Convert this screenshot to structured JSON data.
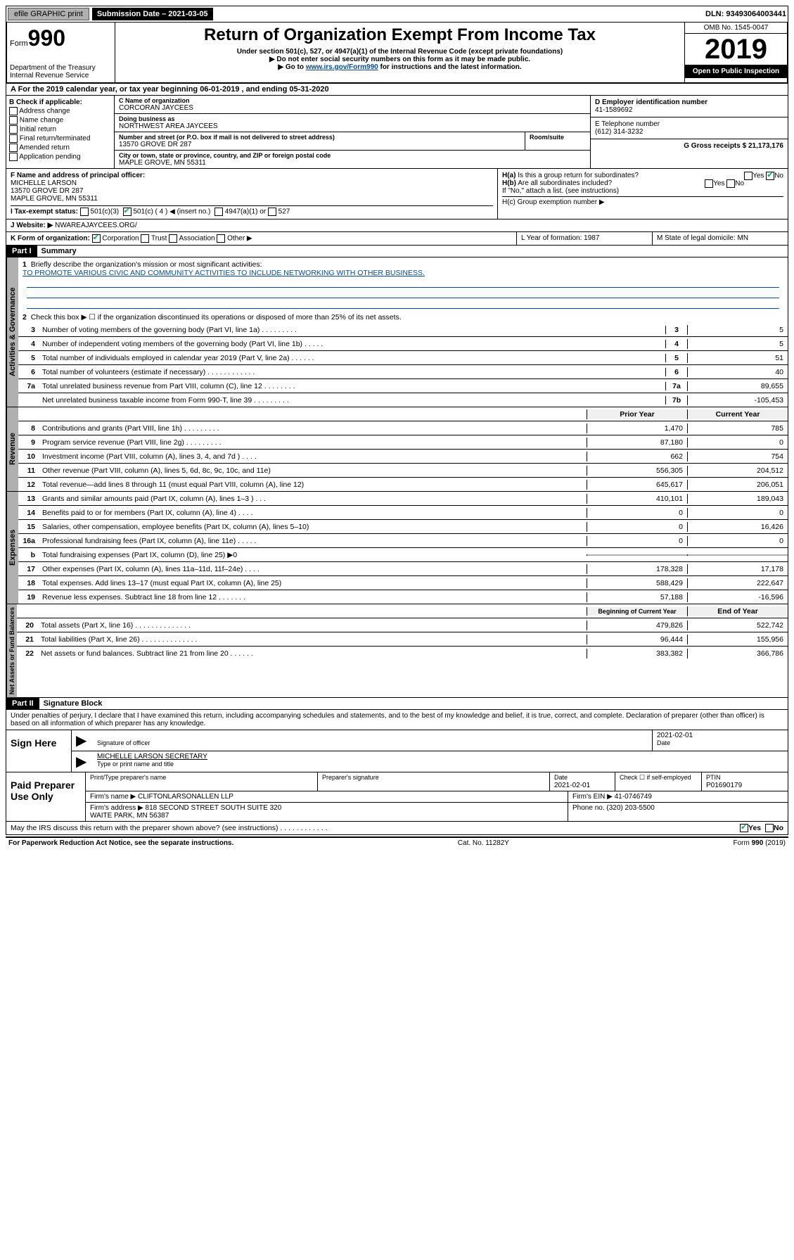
{
  "topbar": {
    "efile": "efile GRAPHIC print",
    "sub_label": "Submission Date – 2021-03-05",
    "dln": "DLN: 93493064003441"
  },
  "header": {
    "form_word": "Form",
    "form_num": "990",
    "dept": "Department of the Treasury\nInternal Revenue Service",
    "title": "Return of Organization Exempt From Income Tax",
    "sub1": "Under section 501(c), 527, or 4947(a)(1) of the Internal Revenue Code (except private foundations)",
    "sub2": "▶ Do not enter social security numbers on this form as it may be made public.",
    "sub3_pre": "▶ Go to ",
    "sub3_link": "www.irs.gov/Form990",
    "sub3_post": " for instructions and the latest information.",
    "omb": "OMB No. 1545-0047",
    "year": "2019",
    "open": "Open to Public Inspection"
  },
  "rowA": "A   For the 2019 calendar year, or tax year beginning 06-01-2019    , and ending 05-31-2020",
  "colB": {
    "head": "B Check if applicable:",
    "opts": [
      "Address change",
      "Name change",
      "Initial return",
      "Final return/terminated",
      "Amended return",
      "Application pending"
    ]
  },
  "colC": {
    "name_lbl": "C Name of organization",
    "name": "CORCORAN JAYCEES",
    "dba_lbl": "Doing business as",
    "dba": "NORTHWEST AREA JAYCEES",
    "addr_lbl": "Number and street (or P.O. box if mail is not delivered to street address)",
    "room_lbl": "Room/suite",
    "addr": "13570 GROVE DR 287",
    "city_lbl": "City or town, state or province, country, and ZIP or foreign postal code",
    "city": "MAPLE GROVE, MN  55311"
  },
  "colD": {
    "d_lbl": "D Employer identification number",
    "d_val": "41-1589692",
    "e_lbl": "E Telephone number",
    "e_val": "(612) 314-3232",
    "g_lbl": "G Gross receipts $ 21,173,176"
  },
  "rowF": {
    "f_lbl": "F  Name and address of principal officer:",
    "f_val": "MICHELLE LARSON\n13570 GROVE DR 287\nMAPLE GROVE, MN  55311",
    "h_a": "H(a)  Is this a group return for subordinates?",
    "h_b": "H(b)  Are all subordinates included?",
    "h_note": "If \"No,\" attach a list. (see instructions)",
    "h_c": "H(c)  Group exemption number ▶",
    "yes": "Yes",
    "no": "No"
  },
  "rowI": {
    "lbl": "I     Tax-exempt status:",
    "o1": "501(c)(3)",
    "o2": "501(c) ( 4 ) ◀ (insert no.)",
    "o3": "4947(a)(1) or",
    "o4": "527"
  },
  "rowJ": {
    "lbl": "J     Website: ▶",
    "val": "NWAREAJAYCEES.ORG/"
  },
  "rowK": {
    "lbl": "K Form of organization:",
    "o1": "Corporation",
    "o2": "Trust",
    "o3": "Association",
    "o4": "Other ▶",
    "l_lbl": "L Year of formation: 1987",
    "m_lbl": "M State of legal domicile: MN"
  },
  "part1": {
    "hdr": "Part I",
    "title": "Summary",
    "q1": "Briefly describe the organization's mission or most significant activities:",
    "mission": "TO PROMOTE VARIOUS CIVIC AND COMMUNITY ACTIVITIES TO INCLUDE NETWORKING WITH OTHER BUSINESS.",
    "q2": "Check this box ▶ ☐  if the organization discontinued its operations or disposed of more than 25% of its net assets.",
    "rows_gov": [
      {
        "n": "3",
        "t": "Number of voting members of the governing body (Part VI, line 1a)   .    .    .    .    .    .    .    .    .",
        "bn": "3",
        "v": "5"
      },
      {
        "n": "4",
        "t": "Number of independent voting members of the governing body (Part VI, line 1b)   .    .    .    .    .",
        "bn": "4",
        "v": "5"
      },
      {
        "n": "5",
        "t": "Total number of individuals employed in calendar year 2019 (Part V, line 2a)   .    .    .    .    .    .",
        "bn": "5",
        "v": "51"
      },
      {
        "n": "6",
        "t": "Total number of volunteers (estimate if necessary)   .    .    .    .    .    .    .    .    .    .    .    .",
        "bn": "6",
        "v": "40"
      },
      {
        "n": "7a",
        "t": "Total unrelated business revenue from Part VIII, column (C), line 12   .    .    .    .    .    .    .    .",
        "bn": "7a",
        "v": "89,655"
      },
      {
        "n": "",
        "t": "Net unrelated business taxable income from Form 990-T, line 39   .    .    .    .    .    .    .    .    .",
        "bn": "7b",
        "v": "-105,453"
      }
    ],
    "col_hdr1": "Prior Year",
    "col_hdr2": "Current Year",
    "rows_rev": [
      {
        "n": "8",
        "t": "Contributions and grants (Part VIII, line 1h)   .    .    .    .    .    .    .    .    .",
        "p": "1,470",
        "c": "785"
      },
      {
        "n": "9",
        "t": "Program service revenue (Part VIII, line 2g)   .    .    .    .    .    .    .    .    .",
        "p": "87,180",
        "c": "0"
      },
      {
        "n": "10",
        "t": "Investment income (Part VIII, column (A), lines 3, 4, and 7d )   .    .    .    .",
        "p": "662",
        "c": "754"
      },
      {
        "n": "11",
        "t": "Other revenue (Part VIII, column (A), lines 5, 6d, 8c, 9c, 10c, and 11e)",
        "p": "556,305",
        "c": "204,512"
      },
      {
        "n": "12",
        "t": "Total revenue—add lines 8 through 11 (must equal Part VIII, column (A), line 12)",
        "p": "645,617",
        "c": "206,051"
      }
    ],
    "rows_exp": [
      {
        "n": "13",
        "t": "Grants and similar amounts paid (Part IX, column (A), lines 1–3 )   .    .    .",
        "p": "410,101",
        "c": "189,043"
      },
      {
        "n": "14",
        "t": "Benefits paid to or for members (Part IX, column (A), line 4)   .    .    .    .",
        "p": "0",
        "c": "0"
      },
      {
        "n": "15",
        "t": "Salaries, other compensation, employee benefits (Part IX, column (A), lines 5–10)",
        "p": "0",
        "c": "16,426"
      },
      {
        "n": "16a",
        "t": "Professional fundraising fees (Part IX, column (A), line 11e)   .    .    .    .    .",
        "p": "0",
        "c": "0"
      },
      {
        "n": "b",
        "t": "Total fundraising expenses (Part IX, column (D), line 25) ▶0",
        "p": "",
        "c": "",
        "shade": true
      },
      {
        "n": "17",
        "t": "Other expenses (Part IX, column (A), lines 11a–11d, 11f–24e)   .    .    .    .",
        "p": "178,328",
        "c": "17,178"
      },
      {
        "n": "18",
        "t": "Total expenses. Add lines 13–17 (must equal Part IX, column (A), line 25)",
        "p": "588,429",
        "c": "222,647"
      },
      {
        "n": "19",
        "t": "Revenue less expenses. Subtract line 18 from line 12   .    .    .    .    .    .    .",
        "p": "57,188",
        "c": "-16,596"
      }
    ],
    "net_hdr1": "Beginning of Current Year",
    "net_hdr2": "End of Year",
    "rows_net": [
      {
        "n": "20",
        "t": "Total assets (Part X, line 16)   .    .    .    .    .    .    .    .    .    .    .    .    .    .",
        "p": "479,826",
        "c": "522,742"
      },
      {
        "n": "21",
        "t": "Total liabilities (Part X, line 26)   .    .    .    .    .    .    .    .    .    .    .    .    .    .",
        "p": "96,444",
        "c": "155,956"
      },
      {
        "n": "22",
        "t": "Net assets or fund balances. Subtract line 21 from line 20   .    .    .    .    .    .",
        "p": "383,382",
        "c": "366,786"
      }
    ],
    "tabs": {
      "gov": "Activities & Governance",
      "rev": "Revenue",
      "exp": "Expenses",
      "net": "Net Assets or Fund Balances"
    }
  },
  "part2": {
    "hdr": "Part II",
    "title": "Signature Block",
    "perjury": "Under penalties of perjury, I declare that I have examined this return, including accompanying schedules and statements, and to the best of my knowledge and belief, it is true, correct, and complete. Declaration of preparer (other than officer) is based on all information of which preparer has any knowledge.",
    "sign_here": "Sign Here",
    "sig_officer": "Signature of officer",
    "date1": "2021-02-01",
    "date_lbl": "Date",
    "name_title": "MICHELLE LARSON  SECRETARY",
    "type_name": "Type or print name and title",
    "paid": "Paid Preparer Use Only",
    "prep_name_lbl": "Print/Type preparer's name",
    "prep_sig_lbl": "Preparer's signature",
    "prep_date": "2021-02-01",
    "check_self": "Check ☐ if self-employed",
    "ptin_lbl": "PTIN",
    "ptin": "P01690179",
    "firm_name_lbl": "Firm's name    ▶",
    "firm_name": "CLIFTONLARSONALLEN LLP",
    "firm_ein_lbl": "Firm's EIN ▶",
    "firm_ein": "41-0746749",
    "firm_addr_lbl": "Firm's address ▶",
    "firm_addr": "818 SECOND STREET SOUTH SUITE 320\nWAITE PARK, MN  56387",
    "phone_lbl": "Phone no.",
    "phone": "(320) 203-5500",
    "discuss": "May the IRS discuss this return with the preparer shown above? (see instructions)   .    .    .    .    .    .    .    .    .    .    .    .",
    "yes": "Yes",
    "no": "No"
  },
  "footer": {
    "l": "For Paperwork Reduction Act Notice, see the separate instructions.",
    "m": "Cat. No. 11282Y",
    "r": "Form 990 (2019)"
  }
}
